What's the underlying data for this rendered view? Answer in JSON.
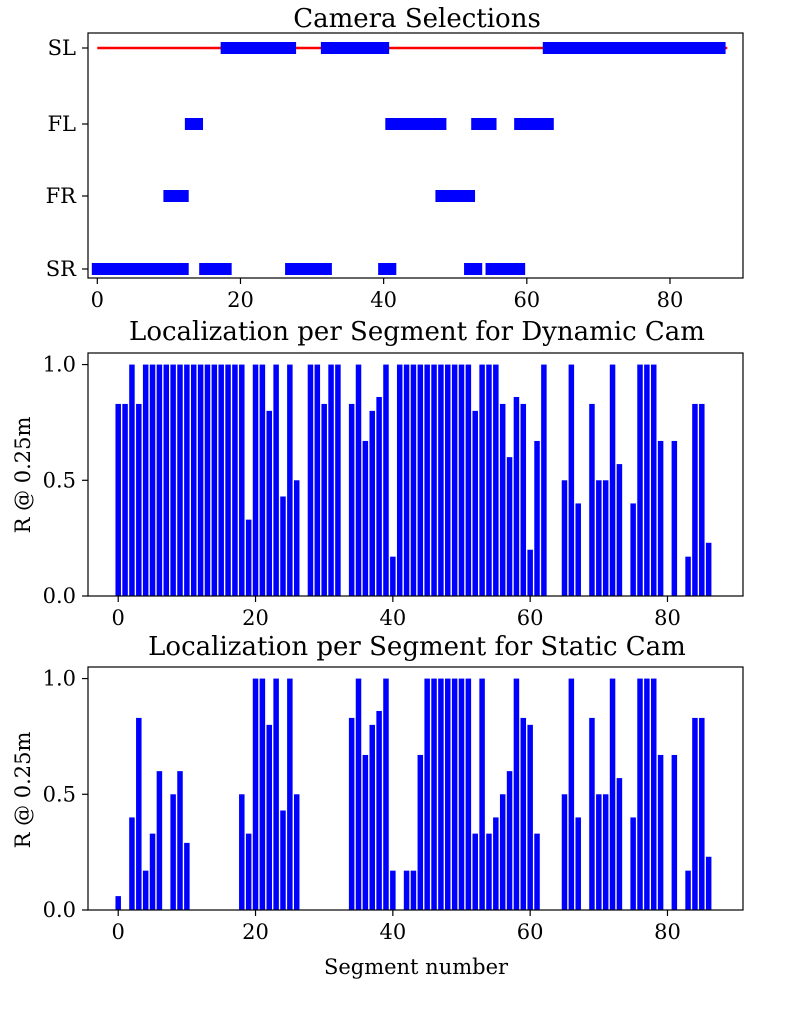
{
  "chart_data": [
    {
      "type": "scatter",
      "title": "Camera Selections",
      "xlabel": "",
      "ylabel": "",
      "xlim": [
        -1.3,
        90.2
      ],
      "xticks": [
        "0",
        "20",
        "40",
        "60",
        "80"
      ],
      "xtick_values": [
        0,
        20,
        40,
        60,
        80
      ],
      "categories": [
        "SL",
        "FL",
        "FR",
        "SR"
      ],
      "reference_line": {
        "category": "SL",
        "x_start": 0,
        "x_end": 88,
        "color": "#ff0000"
      },
      "marker_color": "#0000ff",
      "series": [
        {
          "name": "SL",
          "x": [
            18,
            19,
            20,
            21,
            22,
            23,
            24,
            25,
            26,
            27,
            32,
            33,
            34,
            35,
            36,
            37,
            38,
            39,
            40,
            63,
            64,
            65,
            66,
            67,
            68,
            69,
            70,
            71,
            72,
            73,
            74,
            75,
            76,
            77,
            78,
            79,
            80,
            81,
            82,
            83,
            84,
            85,
            86,
            87
          ]
        },
        {
          "name": "FL",
          "x": [
            13,
            14,
            41,
            42,
            43,
            44,
            45,
            46,
            47,
            48,
            53,
            54,
            55,
            59,
            60,
            61,
            62,
            63
          ]
        },
        {
          "name": "FR",
          "x": [
            10,
            11,
            12,
            48,
            49,
            50,
            51,
            52
          ]
        },
        {
          "name": "SR",
          "x": [
            0,
            1,
            2,
            3,
            4,
            5,
            6,
            7,
            8,
            9,
            10,
            11,
            12,
            15,
            16,
            17,
            18,
            27,
            28,
            29,
            30,
            31,
            32,
            40,
            41,
            52,
            53,
            55,
            56,
            57,
            58,
            59
          ]
        }
      ]
    },
    {
      "type": "bar",
      "title": "Localization per Segment for Dynamic Cam",
      "xlabel": "",
      "ylabel": "R @ 0.25m",
      "xlim": [
        -4.4,
        91
      ],
      "ylim": [
        0,
        1.05
      ],
      "xticks": [
        "0",
        "20",
        "40",
        "60",
        "80"
      ],
      "xtick_values": [
        0,
        20,
        40,
        60,
        80
      ],
      "yticks": [
        "0.0",
        "0.5",
        "1.0"
      ],
      "ytick_values": [
        0,
        0.5,
        1.0
      ],
      "bar_color": "#0000ff",
      "x": [
        0,
        1,
        2,
        3,
        4,
        5,
        6,
        7,
        8,
        9,
        10,
        11,
        12,
        13,
        14,
        15,
        16,
        17,
        18,
        19,
        20,
        21,
        22,
        23,
        24,
        25,
        26,
        27,
        28,
        29,
        30,
        31,
        32,
        33,
        34,
        35,
        36,
        37,
        38,
        39,
        40,
        41,
        42,
        43,
        44,
        45,
        46,
        47,
        48,
        49,
        50,
        51,
        52,
        53,
        54,
        55,
        56,
        57,
        58,
        59,
        60,
        61,
        62,
        63,
        64,
        65,
        66,
        67,
        68,
        69,
        70,
        71,
        72,
        73,
        74,
        75,
        76,
        77,
        78,
        79,
        80,
        81,
        82,
        83,
        84,
        85,
        86,
        87
      ],
      "values": [
        0.83,
        0.83,
        1.0,
        0.83,
        1.0,
        1.0,
        1.0,
        1.0,
        1.0,
        1.0,
        1.0,
        1.0,
        1.0,
        1.0,
        1.0,
        1.0,
        1.0,
        1.0,
        1.0,
        0.33,
        1.0,
        1.0,
        0.8,
        1.0,
        0.43,
        1.0,
        0.5,
        0,
        1.0,
        1.0,
        0.83,
        1.0,
        1.0,
        0,
        0.83,
        1.0,
        0.67,
        0.8,
        0.86,
        1.0,
        0.17,
        1.0,
        1.0,
        1.0,
        1.0,
        1.0,
        1.0,
        1.0,
        1.0,
        1.0,
        1.0,
        1.0,
        0.8,
        1.0,
        1.0,
        1.0,
        0.83,
        0.6,
        0.86,
        0.83,
        0.2,
        0.67,
        1.0,
        0,
        0,
        0.5,
        1.0,
        0.4,
        0,
        0.83,
        0.5,
        0.5,
        1.0,
        0.57,
        0,
        0.4,
        1.0,
        1.0,
        1.0,
        0.67,
        0,
        0.67,
        0,
        0.17,
        0.83,
        0.83,
        0.23,
        0
      ]
    },
    {
      "type": "bar",
      "title": "Localization per Segment for Static Cam",
      "xlabel": "Segment number",
      "ylabel": "R @ 0.25m",
      "xlim": [
        -4.4,
        91
      ],
      "ylim": [
        0,
        1.05
      ],
      "xticks": [
        "0",
        "20",
        "40",
        "60",
        "80"
      ],
      "xtick_values": [
        0,
        20,
        40,
        60,
        80
      ],
      "yticks": [
        "0.0",
        "0.5",
        "1.0"
      ],
      "ytick_values": [
        0,
        0.5,
        1.0
      ],
      "bar_color": "#0000ff",
      "x": [
        0,
        1,
        2,
        3,
        4,
        5,
        6,
        7,
        8,
        9,
        10,
        11,
        12,
        13,
        14,
        15,
        16,
        17,
        18,
        19,
        20,
        21,
        22,
        23,
        24,
        25,
        26,
        27,
        28,
        29,
        30,
        31,
        32,
        33,
        34,
        35,
        36,
        37,
        38,
        39,
        40,
        41,
        42,
        43,
        44,
        45,
        46,
        47,
        48,
        49,
        50,
        51,
        52,
        53,
        54,
        55,
        56,
        57,
        58,
        59,
        60,
        61,
        62,
        63,
        64,
        65,
        66,
        67,
        68,
        69,
        70,
        71,
        72,
        73,
        74,
        75,
        76,
        77,
        78,
        79,
        80,
        81,
        82,
        83,
        84,
        85,
        86,
        87
      ],
      "values": [
        0.06,
        0,
        0.4,
        0.83,
        0.17,
        0.33,
        0.6,
        0,
        0.5,
        0.6,
        0.29,
        0,
        0,
        0,
        0,
        0,
        0,
        0,
        0.5,
        0.33,
        1.0,
        1.0,
        0.8,
        1.0,
        0.43,
        1.0,
        0.5,
        0,
        0,
        0,
        0,
        0,
        0,
        0,
        0.83,
        1.0,
        0.67,
        0.8,
        0.86,
        1.0,
        0.17,
        0,
        0.17,
        0.17,
        0.67,
        1.0,
        1.0,
        1.0,
        1.0,
        1.0,
        1.0,
        1.0,
        0.33,
        1.0,
        0.33,
        0.4,
        0.5,
        0.6,
        1.0,
        0.83,
        0.8,
        0.33,
        0,
        0,
        0,
        0.5,
        1.0,
        0.4,
        0,
        0.83,
        0.5,
        0.5,
        1.0,
        0.57,
        0,
        0.4,
        1.0,
        1.0,
        1.0,
        0.67,
        0,
        0.67,
        0,
        0.17,
        0.83,
        0.83,
        0.23,
        0
      ]
    }
  ]
}
